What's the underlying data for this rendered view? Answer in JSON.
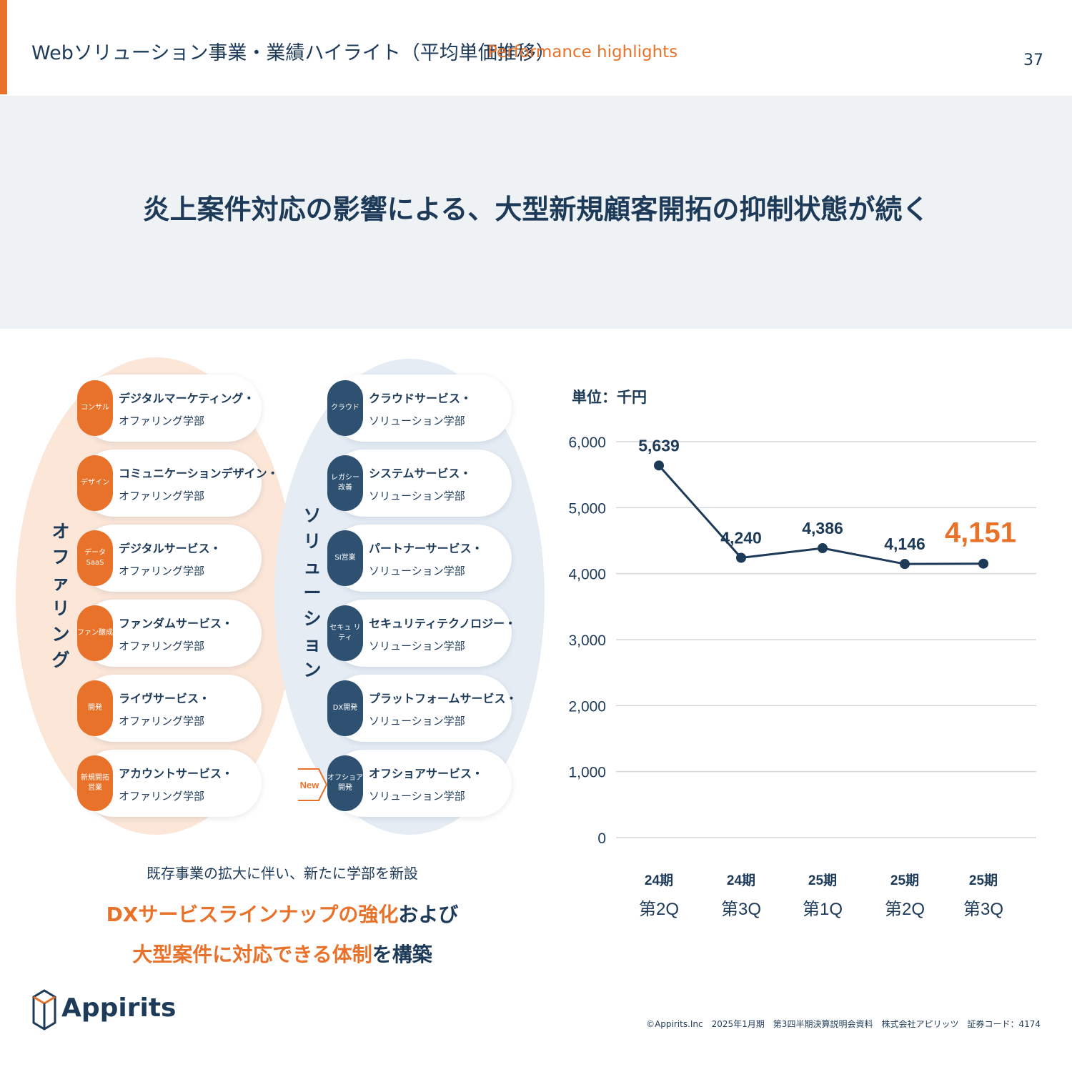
{
  "header": {
    "title": "Webソリューション事業・業績ハイライト（平均単価推移）",
    "subtitle": "Performance highlights",
    "page_number": "37"
  },
  "headline": "炎上案件対応の影響による、大型新規顧客開拓の抑制状態が続く",
  "diagram": {
    "offering_label": "オファリング",
    "solution_label": "ソリューション",
    "offering_items": [
      {
        "badge": "コンサル",
        "line1": "デジタルマーケティング・",
        "line2": "オファリング学部"
      },
      {
        "badge": "デザイン",
        "line1": "コミュニケーションデザイン・",
        "line2": "オファリング学部"
      },
      {
        "badge": "データ SaaS",
        "line1": "デジタルサービス・",
        "line2": "オファリング学部"
      },
      {
        "badge": "ファン醸成",
        "line1": "ファンダムサービス・",
        "line2": "オファリング学部"
      },
      {
        "badge": "開発",
        "line1": "ライヴサービス・",
        "line2": "オファリング学部"
      },
      {
        "badge": "新規開拓 営業",
        "line1": "アカウントサービス・",
        "line2": "オファリング学部"
      }
    ],
    "solution_items": [
      {
        "badge": "クラウド",
        "line1": "クラウドサービス・",
        "line2": "ソリューション学部"
      },
      {
        "badge": "レガシー 改善",
        "line1": "システムサービス・",
        "line2": "ソリューション学部"
      },
      {
        "badge": "SI営業",
        "line1": "パートナーサービス・",
        "line2": "ソリューション学部"
      },
      {
        "badge": "セキュ リティ",
        "line1": "セキュリティテクノロジー・",
        "line2": "ソリューション学部"
      },
      {
        "badge": "DX開発",
        "line1": "プラットフォームサービス・",
        "line2": "ソリューション学部"
      },
      {
        "badge": "オフショア 開発",
        "line1": "オフショアサービス・",
        "line2": "ソリューション学部"
      }
    ],
    "new_badge": "New",
    "note_line1": "既存事業の拡大に伴い、新たに学部を新設",
    "note_line2_orange": "DXサービスラインナップの強化",
    "note_line2_navy": "および",
    "note_line3_orange": "大型案件に対応できる体制",
    "note_line3_navy": "を構築"
  },
  "chart_data": {
    "type": "line",
    "unit_label": "単位：千円",
    "categories": [
      [
        "24期",
        "第2Q"
      ],
      [
        "24期",
        "第3Q"
      ],
      [
        "25期",
        "第1Q"
      ],
      [
        "25期",
        "第2Q"
      ],
      [
        "25期",
        "第3Q"
      ]
    ],
    "values": [
      5639,
      4240,
      4386,
      4146,
      4151
    ],
    "value_labels": [
      "5,639",
      "4,240",
      "4,386",
      "4,146",
      "4,151"
    ],
    "highlight_index": 4,
    "ylim": [
      0,
      6000
    ],
    "yticks": [
      0,
      1000,
      2000,
      3000,
      4000,
      5000,
      6000
    ],
    "ytick_labels": [
      "0",
      "1,000",
      "2,000",
      "3,000",
      "4,000",
      "5,000",
      "6,000"
    ],
    "grid": true,
    "colors": {
      "line": "#1d3a58",
      "highlight": "#e8722a",
      "grid": "#d4d8dc"
    }
  },
  "colors": {
    "orange": "#e8722a",
    "navy": "#1d3a58",
    "band": "#eef2f5"
  },
  "logo": {
    "text": "Appirits"
  },
  "footer": "©Appirits.Inc　2025年1月期　第3四半期決算説明会資料　株式会社アピリッツ　証券コード：4174"
}
